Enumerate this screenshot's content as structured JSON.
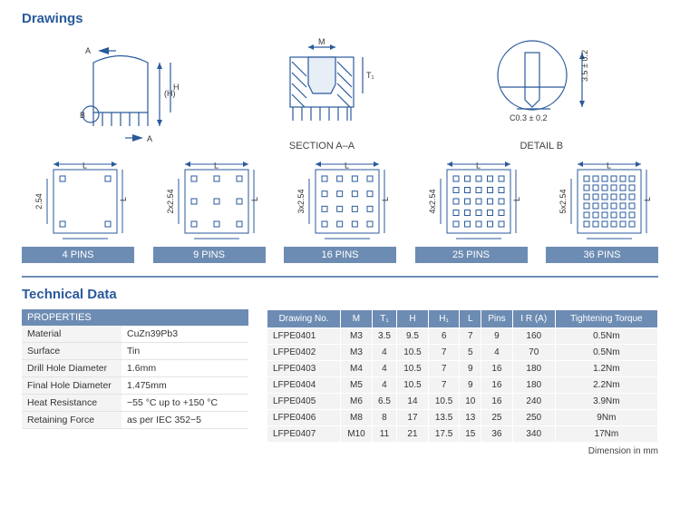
{
  "titles": {
    "drawings": "Drawings",
    "techdata": "Technical Data"
  },
  "drawingLabels": {
    "sectionAA": "SECTION A–A",
    "detailB": "DETAIL B",
    "dim_M": "M",
    "dim_H": "(H)",
    "dim_H1": "H₁",
    "dim_T1": "T₁",
    "c03": "C0.3 ± 0.2",
    "d35": "3.5 ± 0.2",
    "A": "A",
    "B": "B"
  },
  "pinGrids": [
    {
      "label": "4 PINS",
      "n": 2,
      "ydim": "2.54",
      "xdim": "2.54"
    },
    {
      "label": "9 PINS",
      "n": 3,
      "ydim": "2x2.54",
      "xdim": "2x2.54"
    },
    {
      "label": "16 PINS",
      "n": 4,
      "ydim": "3x2.54",
      "xdim": "3x2.54"
    },
    {
      "label": "25 PINS",
      "n": 5,
      "ydim": "4x2.54",
      "xdim": "4x2.54"
    },
    {
      "label": "36 PINS",
      "n": 6,
      "ydim": "5x2.54",
      "xdim": "5x2.54"
    }
  ],
  "properties": {
    "header": "PROPERTIES",
    "rows": [
      {
        "label": "Material",
        "value": "CuZn39Pb3"
      },
      {
        "label": "Surface",
        "value": "Tin"
      },
      {
        "label": "Drill Hole Diameter",
        "value": "1.6mm"
      },
      {
        "label": "Final Hole Diameter",
        "value": "1.475mm"
      },
      {
        "label": "Heat Resistance",
        "value": "−55 °C up to +150 °C"
      },
      {
        "label": "Retaining Force",
        "value": "as per IEC 352−5"
      }
    ]
  },
  "dataTable": {
    "columns": [
      "Drawing No.",
      "M",
      "T₁",
      "H",
      "H₁",
      "L",
      "Pins",
      "I R (A)",
      "Tightening Torque"
    ],
    "rows": [
      [
        "LFPE0401",
        "M3",
        "3.5",
        "9.5",
        "6",
        "7",
        "9",
        "160",
        "0.5Nm"
      ],
      [
        "LFPE0402",
        "M3",
        "4",
        "10.5",
        "7",
        "5",
        "4",
        "70",
        "0.5Nm"
      ],
      [
        "LFPE0403",
        "M4",
        "4",
        "10.5",
        "7",
        "9",
        "16",
        "180",
        "1.2Nm"
      ],
      [
        "LFPE0404",
        "M5",
        "4",
        "10.5",
        "7",
        "9",
        "16",
        "180",
        "2.2Nm"
      ],
      [
        "LFPE0405",
        "M6",
        "6.5",
        "14",
        "10.5",
        "10",
        "16",
        "240",
        "3.9Nm"
      ],
      [
        "LFPE0406",
        "M8",
        "8",
        "17",
        "13.5",
        "13",
        "25",
        "250",
        "9Nm"
      ],
      [
        "LFPE0407",
        "M10",
        "11",
        "21",
        "17.5",
        "15",
        "36",
        "340",
        "17Nm"
      ]
    ]
  },
  "footnote": "Dimension in mm",
  "style": {
    "accent": "#2a5a9b",
    "headerBg": "#6d8cb3",
    "cellBg": "#f3f3f3"
  }
}
